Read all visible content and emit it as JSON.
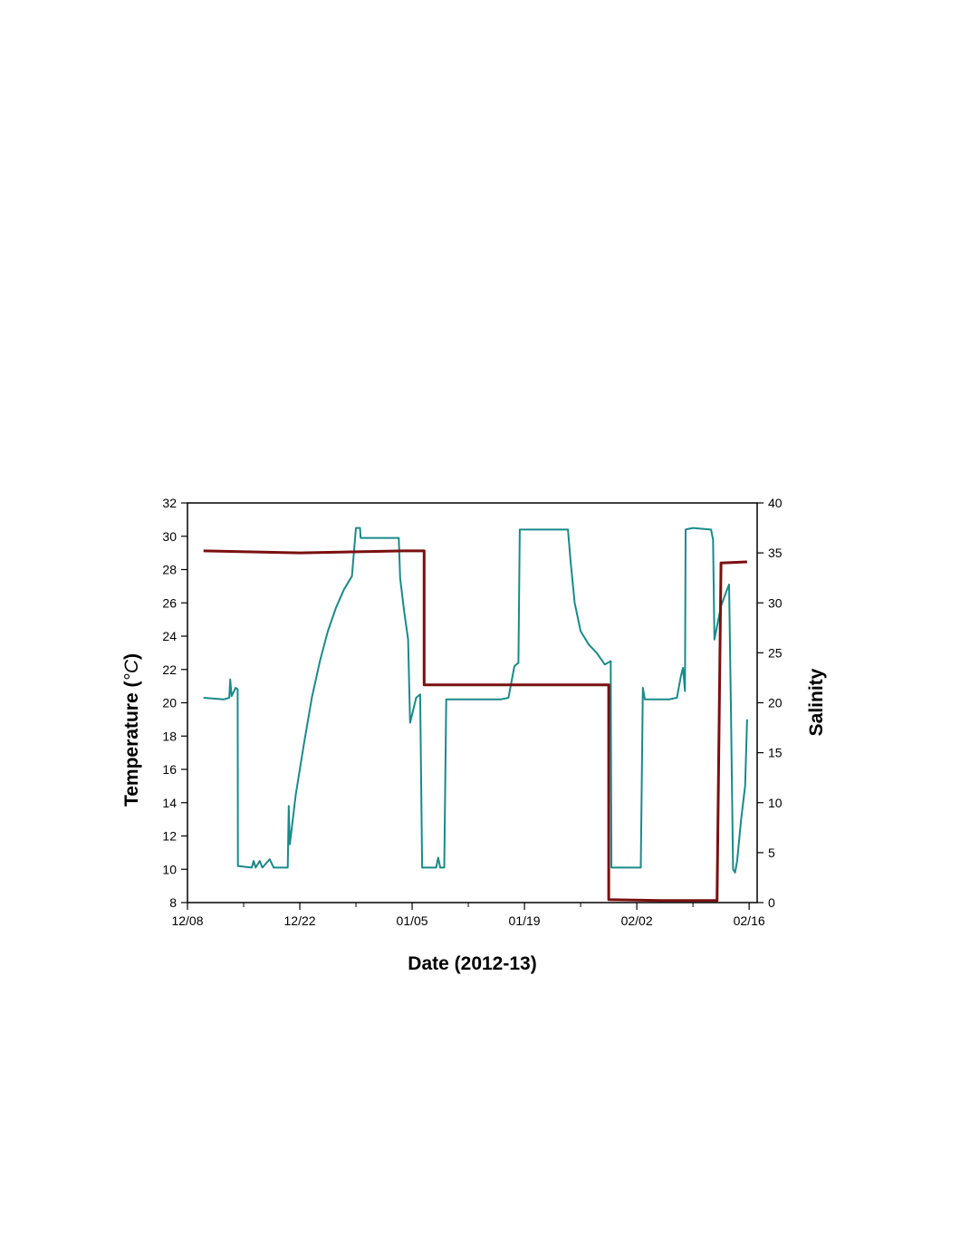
{
  "chart_data": {
    "type": "line",
    "xlabel": "Date (2012-13)",
    "ylabel_left_main": "Temperature (",
    "ylabel_left_unit": "°C",
    "ylabel_left_close": ")",
    "ylabel_right": "Salinity",
    "x_ticks": [
      "12/08",
      "12/22",
      "01/05",
      "01/19",
      "02/02",
      "02/16"
    ],
    "x_tick_dates": [
      "2012-12-08",
      "2012-12-22",
      "2013-01-05",
      "2013-01-19",
      "2013-02-02",
      "2013-02-16"
    ],
    "xlim": [
      "2012-12-08",
      "2013-02-17"
    ],
    "y_left_ticks": [
      8,
      10,
      12,
      14,
      16,
      18,
      20,
      22,
      24,
      26,
      28,
      30,
      32
    ],
    "y_left_lim": [
      8,
      32
    ],
    "y_right_ticks": [
      0,
      5,
      10,
      15,
      20,
      25,
      30,
      35,
      40
    ],
    "y_right_lim": [
      0,
      40
    ],
    "grid": false,
    "series": [
      {
        "axis": "left",
        "color": "#1a8a8a",
        "points": [
          [
            "2012-12-10 00:00",
            20.3
          ],
          [
            "2012-12-12 12:00",
            20.2
          ],
          [
            "2012-12-13 05:00",
            20.3
          ],
          [
            "2012-12-13 08:00",
            21.4
          ],
          [
            "2012-12-13 12:00",
            20.4
          ],
          [
            "2012-12-14 00:00",
            20.9
          ],
          [
            "2012-12-14 06:00",
            20.8
          ],
          [
            "2012-12-14 07:00",
            10.2
          ],
          [
            "2012-12-16 00:00",
            10.1
          ],
          [
            "2012-12-16 06:00",
            10.5
          ],
          [
            "2012-12-16 12:00",
            10.1
          ],
          [
            "2012-12-17 00:00",
            10.5
          ],
          [
            "2012-12-17 08:00",
            10.1
          ],
          [
            "2012-12-18 06:00",
            10.6
          ],
          [
            "2012-12-18 18:00",
            10.1
          ],
          [
            "2012-12-20 12:00",
            10.1
          ],
          [
            "2012-12-20 15:00",
            13.8
          ],
          [
            "2012-12-20 18:00",
            11.5
          ],
          [
            "2012-12-21 12:00",
            14.5
          ],
          [
            "2012-12-22 12:00",
            17.5
          ],
          [
            "2012-12-23 12:00",
            20.3
          ],
          [
            "2012-12-24 12:00",
            22.5
          ],
          [
            "2012-12-25 12:00",
            24.3
          ],
          [
            "2012-12-26 12:00",
            25.7
          ],
          [
            "2012-12-27 12:00",
            26.8
          ],
          [
            "2012-12-28 12:00",
            27.6
          ],
          [
            "2012-12-29 00:00",
            30.5
          ],
          [
            "2012-12-29 12:00",
            30.5
          ],
          [
            "2012-12-29 14:00",
            29.9
          ],
          [
            "2013-01-01 00:00",
            29.9
          ],
          [
            "2013-01-03 08:00",
            29.9
          ],
          [
            "2013-01-03 12:00",
            27.5
          ],
          [
            "2013-01-04 00:00",
            25.5
          ],
          [
            "2013-01-04 12:00",
            23.8
          ],
          [
            "2013-01-04 18:00",
            18.8
          ],
          [
            "2013-01-05 12:00",
            20.3
          ],
          [
            "2013-01-06 00:00",
            20.5
          ],
          [
            "2013-01-06 06:00",
            10.1
          ],
          [
            "2013-01-08 00:00",
            10.1
          ],
          [
            "2013-01-08 06:00",
            10.7
          ],
          [
            "2013-01-08 12:00",
            10.1
          ],
          [
            "2013-01-09 00:00",
            10.1
          ],
          [
            "2013-01-09 06:00",
            20.2
          ],
          [
            "2013-01-12 00:00",
            20.2
          ],
          [
            "2013-01-16 00:00",
            20.2
          ],
          [
            "2013-01-17 00:00",
            20.3
          ],
          [
            "2013-01-17 18:00",
            22.2
          ],
          [
            "2013-01-18 06:00",
            22.4
          ],
          [
            "2013-01-18 10:00",
            30.4
          ],
          [
            "2013-01-21 00:00",
            30.4
          ],
          [
            "2013-01-24 10:00",
            30.4
          ],
          [
            "2013-01-24 18:00",
            28.5
          ],
          [
            "2013-01-25 06:00",
            26.0
          ],
          [
            "2013-01-26 00:00",
            24.3
          ],
          [
            "2013-01-27 00:00",
            23.5
          ],
          [
            "2013-01-28 00:00",
            23.0
          ],
          [
            "2013-01-29 00:00",
            22.3
          ],
          [
            "2013-01-29 18:00",
            22.5
          ],
          [
            "2013-01-29 20:00",
            10.1
          ],
          [
            "2013-02-01 00:00",
            10.1
          ],
          [
            "2013-02-02 12:00",
            10.1
          ],
          [
            "2013-02-02 18:00",
            20.9
          ],
          [
            "2013-02-03 00:00",
            20.2
          ],
          [
            "2013-02-06 00:00",
            20.2
          ],
          [
            "2013-02-07 00:00",
            20.3
          ],
          [
            "2013-02-07 12:00",
            21.6
          ],
          [
            "2013-02-07 18:00",
            22.1
          ],
          [
            "2013-02-08 00:00",
            20.7
          ],
          [
            "2013-02-08 02:00",
            30.4
          ],
          [
            "2013-02-09 00:00",
            30.5
          ],
          [
            "2013-02-11 06:00",
            30.4
          ],
          [
            "2013-02-11 12:00",
            29.8
          ],
          [
            "2013-02-11 16:00",
            23.8
          ],
          [
            "2013-02-12 12:00",
            25.8
          ],
          [
            "2013-02-13 06:00",
            26.8
          ],
          [
            "2013-02-13 12:00",
            27.1
          ],
          [
            "2013-02-13 18:00",
            19.0
          ],
          [
            "2013-02-14 00:00",
            10.0
          ],
          [
            "2013-02-14 06:00",
            9.8
          ],
          [
            "2013-02-14 12:00",
            10.5
          ],
          [
            "2013-02-15 00:00",
            13.0
          ],
          [
            "2013-02-15 12:00",
            15.0
          ],
          [
            "2013-02-15 18:00",
            19.0
          ]
        ]
      },
      {
        "axis": "right",
        "color": "#7a1010",
        "points": [
          [
            "2012-12-10 00:00",
            35.2
          ],
          [
            "2012-12-22 00:00",
            35.0
          ],
          [
            "2013-01-04 00:00",
            35.2
          ],
          [
            "2013-01-06 12:00",
            35.2
          ],
          [
            "2013-01-06 12:00",
            21.8
          ],
          [
            "2013-01-20 00:00",
            21.8
          ],
          [
            "2013-01-29 12:00",
            21.8
          ],
          [
            "2013-01-29 12:00",
            0.3
          ],
          [
            "2013-02-05 00:00",
            0.2
          ],
          [
            "2013-02-12 00:00",
            0.2
          ],
          [
            "2013-02-12 12:00",
            34.0
          ],
          [
            "2013-02-15 18:00",
            34.1
          ]
        ]
      }
    ]
  }
}
